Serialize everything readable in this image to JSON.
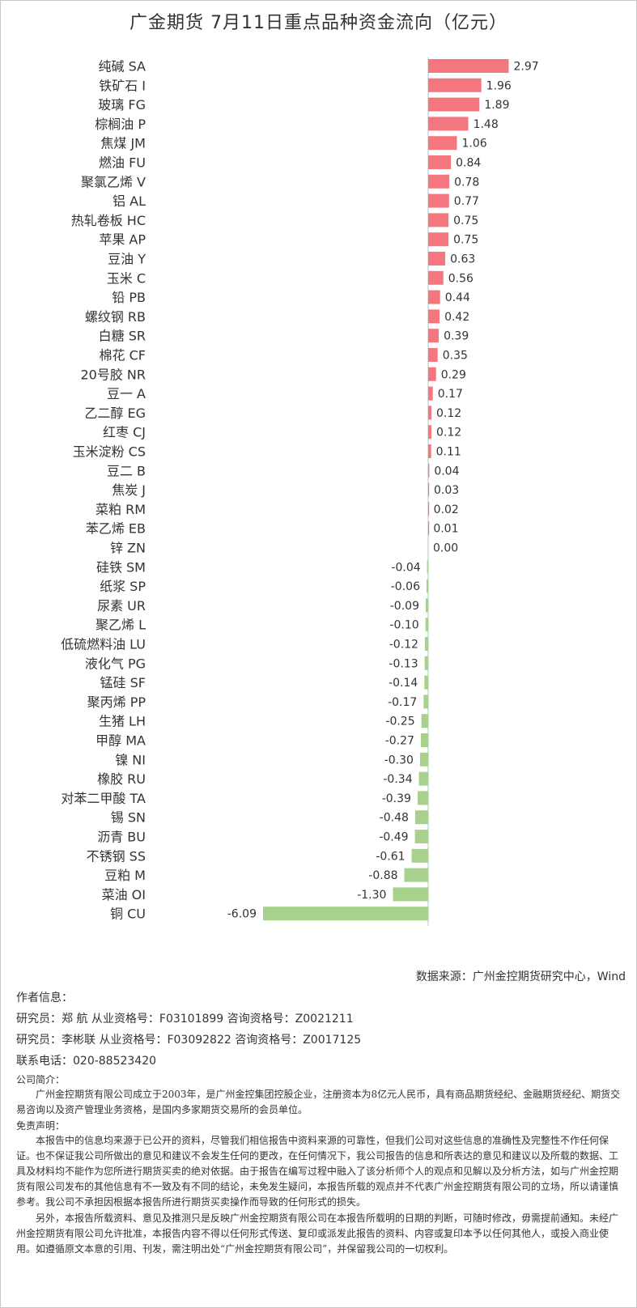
{
  "title": "广金期货 7月11日重点品种资金流向（亿元）",
  "colors": {
    "positive": "#f4777f",
    "negative": "#a9d18e",
    "axis": "#bfbfbf"
  },
  "chart_data": {
    "type": "bar",
    "orientation": "horizontal",
    "title": "广金期货 7月11日重点品种资金流向（亿元）",
    "categories": [
      "纯碱 SA",
      "铁矿石 I",
      "玻璃 FG",
      "棕榈油 P",
      "焦煤 JM",
      "燃油 FU",
      "聚氯乙烯 V",
      "铝 AL",
      "热轧卷板 HC",
      "苹果 AP",
      "豆油 Y",
      "玉米 C",
      "铅 PB",
      "螺纹钢 RB",
      "白糖 SR",
      "棉花 CF",
      "20号胶 NR",
      "豆一 A",
      "乙二醇 EG",
      "红枣 CJ",
      "玉米淀粉 CS",
      "豆二 B",
      "焦炭 J",
      "菜粕 RM",
      "苯乙烯 EB",
      "锌 ZN",
      "硅铁 SM",
      "纸浆 SP",
      "尿素 UR",
      "聚乙烯 L",
      "低硫燃料油 LU",
      "液化气 PG",
      "锰硅 SF",
      "聚丙烯 PP",
      "生猪 LH",
      "甲醇 MA",
      "镍 NI",
      "橡胶 RU",
      "对苯二甲酸 TA",
      "锡 SN",
      "沥青 BU",
      "不锈钢 SS",
      "豆粕 M",
      "菜油 OI",
      "铜 CU"
    ],
    "values": [
      2.97,
      1.96,
      1.89,
      1.48,
      1.06,
      0.84,
      0.78,
      0.77,
      0.75,
      0.75,
      0.63,
      0.56,
      0.44,
      0.42,
      0.39,
      0.35,
      0.29,
      0.17,
      0.12,
      0.12,
      0.11,
      0.04,
      0.03,
      0.02,
      0.01,
      0.0,
      -0.04,
      -0.06,
      -0.09,
      -0.1,
      -0.12,
      -0.13,
      -0.14,
      -0.17,
      -0.25,
      -0.27,
      -0.3,
      -0.34,
      -0.39,
      -0.48,
      -0.49,
      -0.61,
      -0.88,
      -1.3,
      -6.09
    ],
    "value_labels": [
      "2.97",
      "1.96",
      "1.89",
      "1.48",
      "1.06",
      "0.84",
      "0.78",
      "0.77",
      "0.75",
      "0.75",
      "0.63",
      "0.56",
      "0.44",
      "0.42",
      "0.39",
      "0.35",
      "0.29",
      "0.17",
      "0.12",
      "0.12",
      "0.11",
      "0.04",
      "0.03",
      "0.02",
      "0.01",
      "0.00",
      "-0.04",
      "-0.06",
      "-0.09",
      "-0.10",
      "-0.12",
      "-0.13",
      "-0.14",
      "-0.17",
      "-0.25",
      "-0.27",
      "-0.30",
      "-0.34",
      "-0.39",
      "-0.48",
      "-0.49",
      "-0.61",
      "-0.88",
      "-1.30",
      "-6.09"
    ],
    "legend": "none",
    "grid": false
  },
  "source": "数据来源：广州金控期货研究中心，Wind",
  "author_heading": "作者信息：",
  "researchers": [
    "研究员：郑 航    从业资格号：F03101899  咨询资格号：Z0021211",
    "研究员：李彬联   从业资格号：F03092822  咨询资格号：Z0017125"
  ],
  "phone": "联系电话：020-88523420",
  "company_heading": "公司简介：",
  "company_text": "广州金控期货有限公司成立于2003年，是广州金控集团控股企业，注册资本为8亿元人民币，具有商品期货经纪、金融期货经纪、期货交易咨询以及资产管理业务资格，是国内多家期货交易所的会员单位。",
  "disclaimer_heading": "免责声明：",
  "disclaimer_1": "本报告中的信息均来源于已公开的资料，尽管我们相信报告中资料来源的可靠性，但我们公司对这些信息的准确性及完整性不作任何保证。也不保证我公司所做出的意见和建议不会发生任何的更改，在任何情况下，我公司报告的信息和所表达的意见和建议以及所载的数据、工具及材料均不能作为您所进行期货买卖的绝对依据。由于报告在编写过程中融入了该分析师个人的观点和见解以及分析方法，如与广州金控期货有限公司发布的其他信息有不一致及有不同的结论，未免发生疑问，本报告所载的观点并不代表广州金控期货有限公司的立场，所以请谨慎参考。我公司不承担因根据本报告所进行期货买卖操作而导致的任何形式的损失。",
  "disclaimer_2": "另外，本报告所载资料、意见及推测只是反映广州金控期货有限公司在本报告所载明的日期的判断，可随时修改，毋需提前通知。未经广州金控期货有限公司允许批准，本报告内容不得以任何形式传送、复印或派发此报告的资料、内容或复印本予以任何其他人，或投入商业使用。如遵循原文本意的引用、刊发，需注明出处“广州金控期货有限公司”，并保留我公司的一切权利。"
}
